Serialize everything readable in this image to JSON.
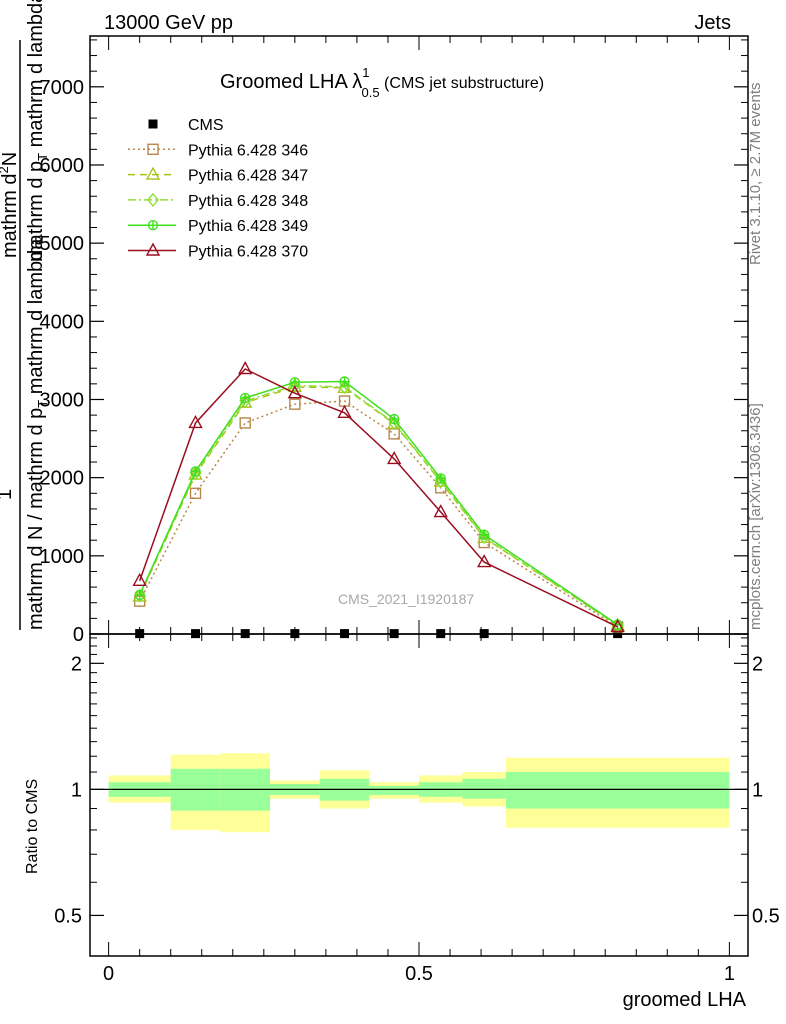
{
  "header": {
    "left": "13000 GeV pp",
    "right": "Jets"
  },
  "side_labels": {
    "rivet": "Rivet 3.1.10, ≥ 2.7M events",
    "mcplots": "mcplots.cern.ch [arXiv:1306.3436]"
  },
  "watermark": "CMS_2021_I1920187",
  "plot_title": {
    "main": "Groomed LHA ",
    "lambda": "λ",
    "sup": "1",
    "sub": "0.5",
    "note": " (CMS jet substructure)"
  },
  "ylabel_main": {
    "part1": "mathrm d N / mathrm d p",
    "part1_sub": "T",
    "part2": " mathrm d lambda",
    "numerator": "1",
    "frac2_top": "mathrm d",
    "frac2_sup": "2",
    "frac2_top2": "N",
    "frac2_bottom": "mathrm d p",
    "frac2_bottom_sub": "T",
    "frac2_bottom2": " mathrm d lambda"
  },
  "ylabel_ratio": "Ratio to CMS",
  "xlabel": "groomed LHA",
  "colors": {
    "cms": "#000000",
    "p346": "#b8874b",
    "p347": "#a8c21c",
    "p348": "#90e038",
    "p349": "#40e020",
    "p370": "#9a0f20",
    "band_outer": "#ffff99",
    "band_inner": "#99ff99"
  },
  "chart_data": {
    "type": "line",
    "x_range": [
      -0.03,
      1.03
    ],
    "main": {
      "y_range": [
        0,
        7650
      ],
      "y_ticks": [
        {
          "value": 0,
          "label": "0"
        },
        {
          "value": 1000,
          "label": "1000"
        },
        {
          "value": 2000,
          "label": "2000"
        },
        {
          "value": 3000,
          "label": "3000"
        },
        {
          "value": 4000,
          "label": "4000"
        },
        {
          "value": 5000,
          "label": "5000"
        },
        {
          "value": 6000,
          "label": "6000"
        },
        {
          "value": 7000,
          "label": "7000"
        }
      ],
      "x": [
        0.05,
        0.14,
        0.22,
        0.3,
        0.38,
        0.46,
        0.535,
        0.605,
        0.82
      ],
      "series": [
        {
          "name": "CMS",
          "key": "cms",
          "marker": "square-filled",
          "values": [
            5,
            5,
            5,
            5,
            5,
            5,
            5,
            5,
            5
          ]
        },
        {
          "name": "Pythia 6.428 346",
          "key": "p346",
          "marker": "square-open",
          "dash": "2,3",
          "values": [
            420,
            1800,
            2700,
            2940,
            2980,
            2560,
            1870,
            1170,
            90
          ]
        },
        {
          "name": "Pythia 6.428 347",
          "key": "p347",
          "marker": "triangle-open",
          "dash": "7,5",
          "values": [
            480,
            2040,
            2960,
            3160,
            3150,
            2690,
            1950,
            1230,
            110
          ]
        },
        {
          "name": "Pythia 6.428 348",
          "key": "p348",
          "marker": "diamond-open",
          "dash": "8,3,2,3",
          "values": [
            490,
            2060,
            2980,
            3180,
            3160,
            2700,
            1960,
            1240,
            110
          ]
        },
        {
          "name": "Pythia 6.428 349",
          "key": "p349",
          "marker": "cross-circle",
          "dash": "",
          "values": [
            500,
            2080,
            3020,
            3220,
            3230,
            2750,
            1990,
            1270,
            120
          ]
        },
        {
          "name": "Pythia 6.428 370",
          "key": "p370",
          "marker": "triangle-open",
          "dash": "",
          "values": [
            680,
            2700,
            3390,
            3080,
            2830,
            2240,
            1560,
            920,
            90
          ]
        }
      ]
    },
    "ratio": {
      "y_range": [
        0.4,
        2.35
      ],
      "y_scale": "log",
      "y_ticks": [
        {
          "value": 0.5,
          "label": "0.5"
        },
        {
          "value": 1,
          "label": "1"
        },
        {
          "value": 2,
          "label": "2"
        }
      ],
      "bands": [
        {
          "x0": 0.0,
          "x1": 0.1,
          "outer": [
            0.93,
            1.08
          ],
          "inner": [
            0.96,
            1.04
          ]
        },
        {
          "x0": 0.1,
          "x1": 0.18,
          "outer": [
            0.8,
            1.21
          ],
          "inner": [
            0.89,
            1.12
          ]
        },
        {
          "x0": 0.18,
          "x1": 0.26,
          "outer": [
            0.79,
            1.22
          ],
          "inner": [
            0.89,
            1.12
          ]
        },
        {
          "x0": 0.26,
          "x1": 0.34,
          "outer": [
            0.95,
            1.05
          ],
          "inner": [
            0.97,
            1.03
          ]
        },
        {
          "x0": 0.34,
          "x1": 0.42,
          "outer": [
            0.9,
            1.11
          ],
          "inner": [
            0.94,
            1.06
          ]
        },
        {
          "x0": 0.42,
          "x1": 0.5,
          "outer": [
            0.95,
            1.04
          ],
          "inner": [
            0.97,
            1.02
          ]
        },
        {
          "x0": 0.5,
          "x1": 0.57,
          "outer": [
            0.93,
            1.08
          ],
          "inner": [
            0.96,
            1.04
          ]
        },
        {
          "x0": 0.57,
          "x1": 0.64,
          "outer": [
            0.91,
            1.1
          ],
          "inner": [
            0.95,
            1.06
          ]
        },
        {
          "x0": 0.64,
          "x1": 1.0,
          "outer": [
            0.81,
            1.19
          ],
          "inner": [
            0.9,
            1.1
          ]
        }
      ]
    },
    "x_ticks": [
      {
        "value": 0,
        "label": "0"
      },
      {
        "value": 0.5,
        "label": "0.5"
      },
      {
        "value": 1,
        "label": "1"
      }
    ]
  }
}
